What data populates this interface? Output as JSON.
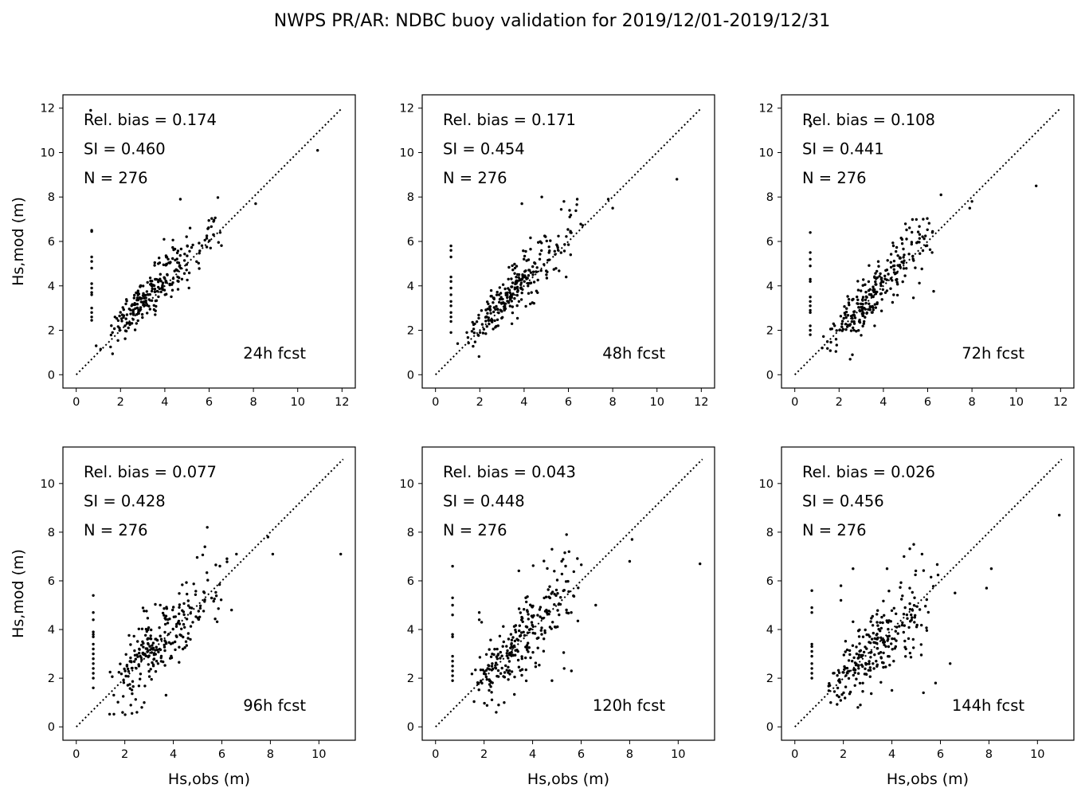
{
  "figure": {
    "title": "NWPS PR/AR: NDBC buoy validation for 2019/12/01-2019/12/31"
  },
  "chart_data": [
    {
      "type": "scatter",
      "panel_label": "24h fcst",
      "stats": {
        "bias_text": "Rel. bias =  0.174",
        "si_text": "SI =  0.460",
        "n_text": "N = 276"
      },
      "xlabel": "",
      "ylabel": "Hs,mod (m)",
      "xlim": [
        -0.6,
        12.6
      ],
      "ylim": [
        -0.6,
        12.6
      ],
      "xticks": [
        0,
        2,
        4,
        6,
        8,
        10,
        12
      ],
      "yticks": [
        0,
        2,
        4,
        6,
        8,
        10,
        12
      ],
      "identity_max": 12,
      "highlight_points": [
        [
          0.65,
          11.9
        ],
        [
          10.9,
          10.1
        ],
        [
          8.1,
          7.7
        ],
        [
          4.7,
          7.9
        ],
        [
          0.7,
          6.5
        ],
        [
          0.7,
          6.45
        ],
        [
          0.7,
          5.3
        ],
        [
          0.7,
          5.1
        ],
        [
          0.7,
          4.8
        ],
        [
          0.7,
          4.1
        ],
        [
          0.7,
          3.9
        ],
        [
          0.7,
          3.7
        ],
        [
          0.7,
          3.6
        ],
        [
          0.7,
          3.0
        ],
        [
          0.7,
          2.8
        ],
        [
          0.7,
          2.6
        ],
        [
          0.7,
          2.45
        ],
        [
          0.9,
          1.3
        ],
        [
          1.1,
          1.15
        ],
        [
          6.5,
          6.4
        ],
        [
          6.2,
          6.9
        ]
      ],
      "cloud": {
        "n": 255,
        "seed": 101,
        "xmin": 1.2,
        "xmax": 7.0,
        "xmode": 2.8,
        "slope": 1.03,
        "intercept": 0.25,
        "sd": 0.38,
        "sdgrow": 0.06
      }
    },
    {
      "type": "scatter",
      "panel_label": "48h fcst",
      "stats": {
        "bias_text": "Rel. bias =  0.171",
        "si_text": "SI =  0.454",
        "n_text": "N = 276"
      },
      "xlabel": "",
      "ylabel": "",
      "xlim": [
        -0.6,
        12.6
      ],
      "ylim": [
        -0.6,
        12.6
      ],
      "xticks": [
        0,
        2,
        4,
        6,
        8,
        10,
        12
      ],
      "yticks": [
        0,
        2,
        4,
        6,
        8,
        10,
        12
      ],
      "identity_max": 12,
      "highlight_points": [
        [
          10.9,
          8.8
        ],
        [
          8.0,
          7.5
        ],
        [
          7.8,
          7.9
        ],
        [
          6.4,
          7.9
        ],
        [
          5.8,
          7.8
        ],
        [
          4.8,
          8.0
        ],
        [
          3.9,
          7.7
        ],
        [
          0.7,
          5.8
        ],
        [
          0.7,
          5.6
        ],
        [
          0.7,
          5.3
        ],
        [
          0.7,
          4.4
        ],
        [
          0.7,
          4.2
        ],
        [
          0.7,
          3.9
        ],
        [
          0.7,
          3.6
        ],
        [
          0.7,
          3.3
        ],
        [
          0.7,
          3.1
        ],
        [
          0.7,
          2.8
        ],
        [
          0.7,
          2.6
        ],
        [
          0.7,
          2.4
        ],
        [
          0.7,
          1.9
        ],
        [
          1.0,
          1.4
        ],
        [
          5.9,
          4.4
        ]
      ],
      "cloud": {
        "n": 254,
        "seed": 202,
        "xmin": 1.2,
        "xmax": 6.8,
        "xmode": 2.8,
        "slope": 1.02,
        "intercept": 0.25,
        "sd": 0.42,
        "sdgrow": 0.07
      }
    },
    {
      "type": "scatter",
      "panel_label": "72h fcst",
      "stats": {
        "bias_text": "Rel. bias =  0.108",
        "si_text": "SI =  0.441",
        "n_text": "N = 276"
      },
      "xlabel": "",
      "ylabel": "",
      "xlim": [
        -0.6,
        12.6
      ],
      "ylim": [
        -0.6,
        12.6
      ],
      "xticks": [
        0,
        2,
        4,
        6,
        8,
        10,
        12
      ],
      "yticks": [
        0,
        2,
        4,
        6,
        8,
        10,
        12
      ],
      "identity_max": 12,
      "highlight_points": [
        [
          0.7,
          11.2
        ],
        [
          10.9,
          8.5
        ],
        [
          8.0,
          7.8
        ],
        [
          7.9,
          7.5
        ],
        [
          6.6,
          8.1
        ],
        [
          5.8,
          7.0
        ],
        [
          0.7,
          6.4
        ],
        [
          0.7,
          5.5
        ],
        [
          0.7,
          5.2
        ],
        [
          0.7,
          4.9
        ],
        [
          0.7,
          4.3
        ],
        [
          0.7,
          4.2
        ],
        [
          0.7,
          3.5
        ],
        [
          0.7,
          3.3
        ],
        [
          0.7,
          3.1
        ],
        [
          0.7,
          2.9
        ],
        [
          0.7,
          2.8
        ],
        [
          0.7,
          2.2
        ],
        [
          0.7,
          2.0
        ],
        [
          0.7,
          1.8
        ],
        [
          2.5,
          0.7
        ],
        [
          2.6,
          0.9
        ],
        [
          6.2,
          5.5
        ]
      ],
      "cloud": {
        "n": 253,
        "seed": 303,
        "xmin": 1.2,
        "xmax": 6.5,
        "xmode": 2.8,
        "slope": 1.0,
        "intercept": 0.15,
        "sd": 0.45,
        "sdgrow": 0.07
      }
    },
    {
      "type": "scatter",
      "panel_label": "96h fcst",
      "stats": {
        "bias_text": "Rel. bias =  0.077",
        "si_text": "SI =  0.428",
        "n_text": "N = 276"
      },
      "xlabel": "Hs,obs (m)",
      "ylabel": "Hs,mod (m)",
      "xlim": [
        -0.55,
        11.5
      ],
      "ylim": [
        -0.55,
        11.5
      ],
      "xticks": [
        0,
        2,
        4,
        6,
        8,
        10
      ],
      "yticks": [
        0,
        2,
        4,
        6,
        8,
        10
      ],
      "identity_max": 11,
      "highlight_points": [
        [
          10.9,
          7.1
        ],
        [
          8.1,
          7.1
        ],
        [
          7.9,
          7.8
        ],
        [
          5.4,
          8.2
        ],
        [
          6.6,
          7.1
        ],
        [
          5.3,
          7.4
        ],
        [
          0.7,
          5.4
        ],
        [
          0.7,
          4.7
        ],
        [
          0.7,
          4.4
        ],
        [
          0.7,
          3.9
        ],
        [
          0.7,
          3.8
        ],
        [
          0.7,
          3.7
        ],
        [
          0.7,
          3.4
        ],
        [
          0.7,
          3.2
        ],
        [
          0.7,
          3.0
        ],
        [
          0.7,
          2.8
        ],
        [
          0.7,
          2.6
        ],
        [
          0.7,
          2.4
        ],
        [
          0.7,
          2.2
        ],
        [
          0.7,
          2.0
        ],
        [
          0.7,
          1.6
        ],
        [
          2.5,
          0.6
        ],
        [
          2.7,
          0.8
        ],
        [
          2.8,
          1.0
        ],
        [
          3.7,
          1.3
        ],
        [
          6.4,
          4.8
        ]
      ],
      "cloud": {
        "n": 250,
        "seed": 404,
        "xmin": 1.2,
        "xmax": 6.4,
        "xmode": 2.8,
        "slope": 0.98,
        "intercept": 0.15,
        "sd": 0.55,
        "sdgrow": 0.09
      }
    },
    {
      "type": "scatter",
      "panel_label": "120h fcst",
      "stats": {
        "bias_text": "Rel. bias =  0.043",
        "si_text": "SI =  0.448",
        "n_text": "N = 276"
      },
      "xlabel": "Hs,obs (m)",
      "ylabel": "",
      "xlim": [
        -0.55,
        11.5
      ],
      "ylim": [
        -0.55,
        11.5
      ],
      "xticks": [
        0,
        2,
        4,
        6,
        8,
        10
      ],
      "yticks": [
        0,
        2,
        4,
        6,
        8,
        10
      ],
      "identity_max": 11,
      "highlight_points": [
        [
          10.9,
          6.7
        ],
        [
          8.0,
          6.8
        ],
        [
          8.1,
          7.7
        ],
        [
          5.4,
          7.9
        ],
        [
          4.8,
          7.3
        ],
        [
          5.5,
          7.2
        ],
        [
          0.7,
          6.6
        ],
        [
          0.7,
          5.3
        ],
        [
          0.7,
          5.0
        ],
        [
          0.7,
          4.6
        ],
        [
          0.7,
          3.8
        ],
        [
          0.7,
          3.7
        ],
        [
          0.7,
          2.9
        ],
        [
          0.7,
          2.7
        ],
        [
          0.7,
          2.5
        ],
        [
          0.7,
          2.3
        ],
        [
          0.7,
          2.1
        ],
        [
          0.7,
          1.9
        ],
        [
          1.8,
          4.7
        ],
        [
          1.8,
          4.4
        ],
        [
          1.9,
          4.3
        ],
        [
          2.5,
          0.6
        ],
        [
          2.6,
          0.9
        ],
        [
          4.8,
          1.9
        ],
        [
          5.3,
          2.4
        ],
        [
          5.6,
          2.3
        ],
        [
          6.6,
          5.0
        ]
      ],
      "cloud": {
        "n": 249,
        "seed": 505,
        "xmin": 1.2,
        "xmax": 6.4,
        "xmode": 2.8,
        "slope": 0.96,
        "intercept": 0.15,
        "sd": 0.6,
        "sdgrow": 0.1
      }
    },
    {
      "type": "scatter",
      "panel_label": "144h fcst",
      "stats": {
        "bias_text": "Rel. bias =  0.026",
        "si_text": "SI =  0.456",
        "n_text": "N = 276"
      },
      "xlabel": "Hs,obs (m)",
      "ylabel": "",
      "xlim": [
        -0.55,
        11.5
      ],
      "ylim": [
        -0.55,
        11.5
      ],
      "xticks": [
        0,
        2,
        4,
        6,
        8,
        10
      ],
      "yticks": [
        0,
        2,
        4,
        6,
        8,
        10
      ],
      "identity_max": 11,
      "highlight_points": [
        [
          10.9,
          8.7
        ],
        [
          8.1,
          6.5
        ],
        [
          7.9,
          5.7
        ],
        [
          4.9,
          7.5
        ],
        [
          4.5,
          7.0
        ],
        [
          2.4,
          6.5
        ],
        [
          3.8,
          6.5
        ],
        [
          0.7,
          5.6
        ],
        [
          0.7,
          4.9
        ],
        [
          0.7,
          4.7
        ],
        [
          0.7,
          3.4
        ],
        [
          0.7,
          3.3
        ],
        [
          0.7,
          3.1
        ],
        [
          0.7,
          2.9
        ],
        [
          0.7,
          2.6
        ],
        [
          0.7,
          2.4
        ],
        [
          0.7,
          2.2
        ],
        [
          0.7,
          2.0
        ],
        [
          1.9,
          5.8
        ],
        [
          1.9,
          5.2
        ],
        [
          6.4,
          2.6
        ],
        [
          5.8,
          1.8
        ],
        [
          2.6,
          0.8
        ],
        [
          2.7,
          0.9
        ],
        [
          4.0,
          1.5
        ],
        [
          5.3,
          1.4
        ],
        [
          6.6,
          5.5
        ]
      ],
      "cloud": {
        "n": 249,
        "seed": 606,
        "xmin": 1.2,
        "xmax": 6.2,
        "xmode": 2.8,
        "slope": 0.95,
        "intercept": 0.2,
        "sd": 0.62,
        "sdgrow": 0.1
      }
    }
  ]
}
